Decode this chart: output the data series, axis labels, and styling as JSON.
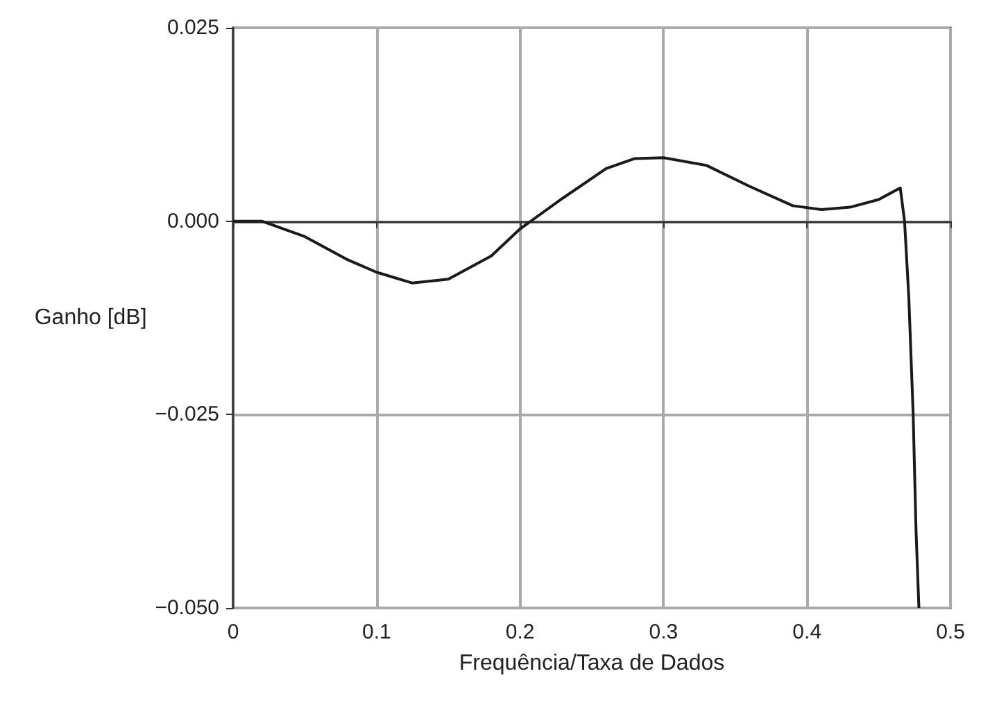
{
  "chart_data": {
    "type": "line",
    "xlabel": "Frequência/Taxa de Dados",
    "ylabel": "Ganho [dB]",
    "x": [
      0,
      0.02,
      0.05,
      0.08,
      0.1,
      0.125,
      0.15,
      0.18,
      0.2,
      0.23,
      0.26,
      0.28,
      0.3,
      0.33,
      0.36,
      0.39,
      0.41,
      0.43,
      0.45,
      0.465,
      0.468,
      0.471,
      0.474,
      0.476,
      0.478
    ],
    "series": [
      {
        "color": "#1a1a1a",
        "values": [
          0,
          0,
          -0.002,
          -0.005,
          -0.0066,
          -0.008,
          -0.0075,
          -0.0045,
          -0.001,
          0.003,
          0.0068,
          0.0081,
          0.0082,
          0.0072,
          0.0045,
          0.002,
          0.0015,
          0.0018,
          0.0028,
          0.0043,
          0,
          -0.01,
          -0.025,
          -0.04,
          -0.05
        ]
      }
    ],
    "xlim": [
      0,
      0.5
    ],
    "xticks": [
      0,
      0.1,
      0.2,
      0.3,
      0.4,
      0.5
    ],
    "ylim": [
      -0.05,
      0.025
    ],
    "yticks": [
      {
        "value": -0.05,
        "label": "−0.050"
      },
      {
        "value": -0.025,
        "label": "−0.025"
      },
      {
        "value": 0,
        "label": "0.000"
      },
      {
        "value": 0.025,
        "label": "0.025"
      }
    ],
    "grid": true,
    "marker": "none",
    "line_style": "solid"
  }
}
